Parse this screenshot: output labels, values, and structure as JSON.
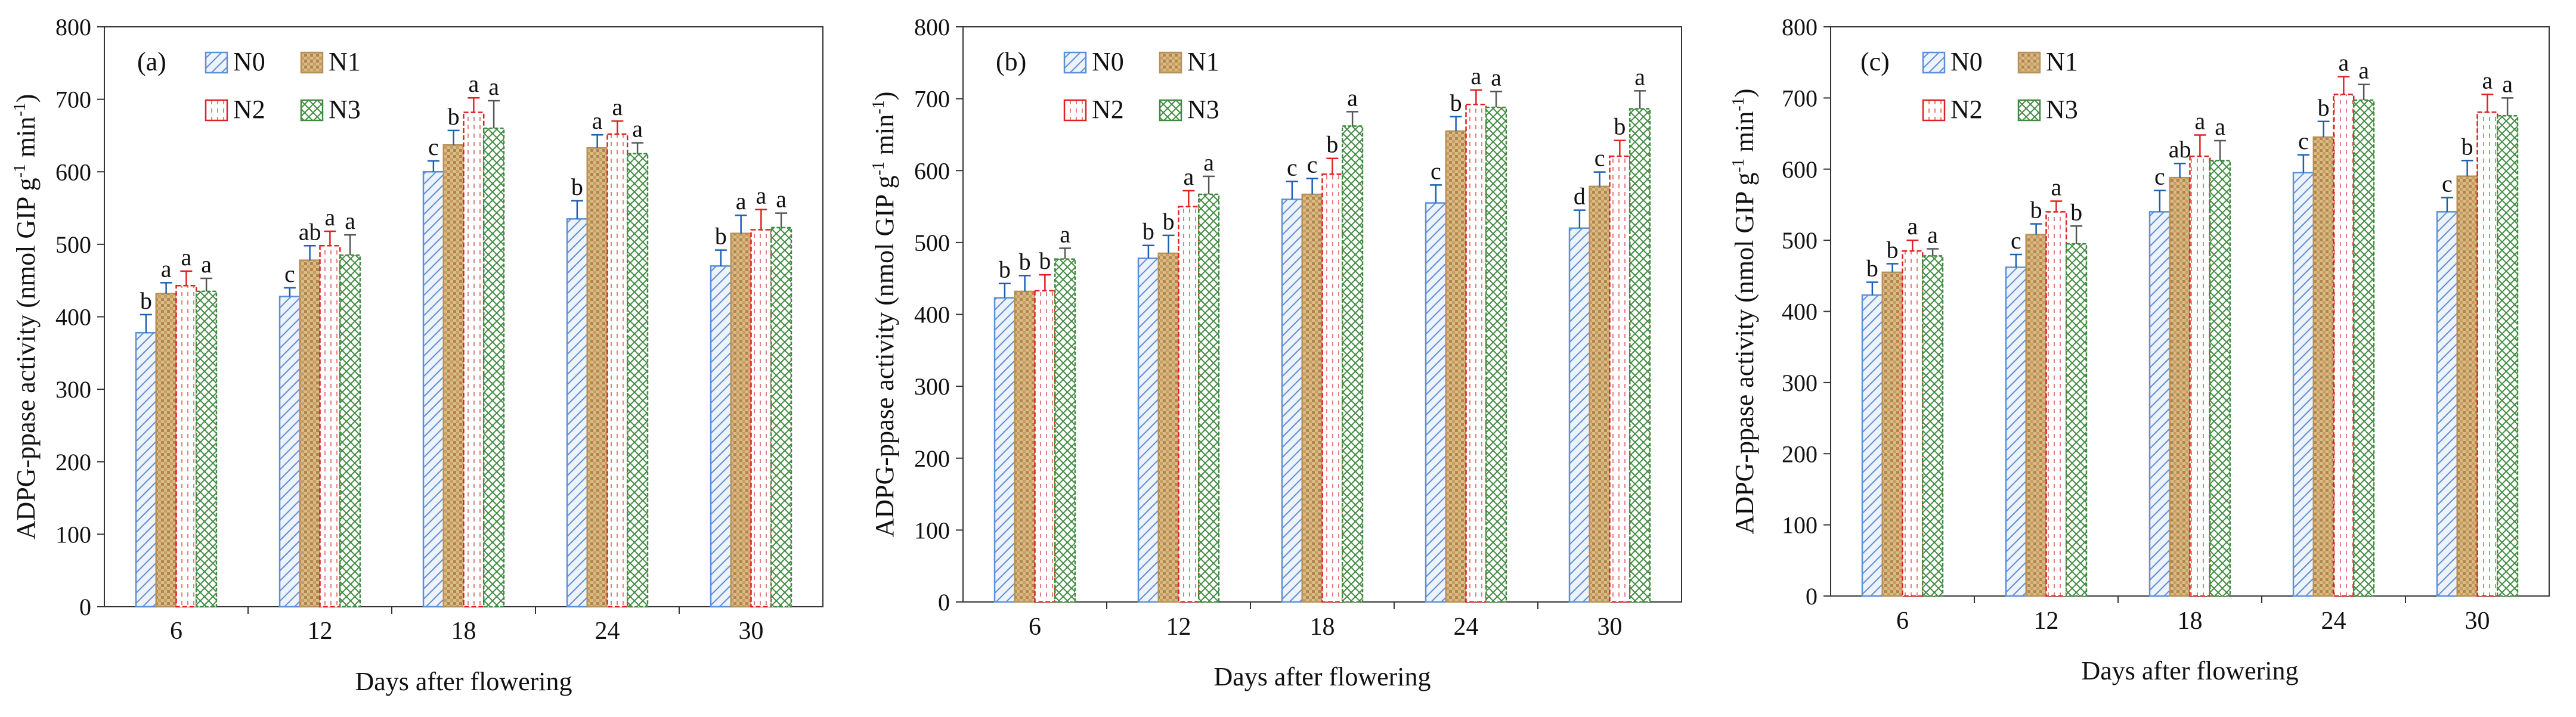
{
  "chart_data": [
    {
      "type": "bar",
      "panel_label": "(a)",
      "title": "",
      "xlabel": "Days after flowering",
      "ylabel": "ADPG-ppase activity (nmol GIP g",
      "ylabel_sup": "-1",
      "ylabel_mid": " min",
      "ylabel_sup2": "-1",
      "ylabel_end": ")",
      "categories": [
        "6",
        "12",
        "18",
        "24",
        "30"
      ],
      "ylim": [
        0,
        800
      ],
      "yticks": [
        "0",
        "100",
        "200",
        "300",
        "400",
        "500",
        "600",
        "700",
        "800"
      ],
      "legend": [
        "N0",
        "N1",
        "N2",
        "N3"
      ],
      "series": [
        {
          "name": "N0",
          "values": [
            378,
            428,
            600,
            535,
            470
          ],
          "errors": [
            25,
            12,
            15,
            25,
            22
          ],
          "letters": [
            "b",
            "c",
            "c",
            "b",
            "b"
          ]
        },
        {
          "name": "N1",
          "values": [
            432,
            478,
            637,
            633,
            515
          ],
          "errors": [
            15,
            20,
            20,
            18,
            25
          ],
          "letters": [
            "a",
            "ab",
            "b",
            "a",
            "a"
          ]
        },
        {
          "name": "N2",
          "values": [
            443,
            498,
            682,
            652,
            520
          ],
          "errors": [
            20,
            20,
            20,
            18,
            28
          ],
          "letters": [
            "a",
            "a",
            "a",
            "a",
            "a"
          ]
        },
        {
          "name": "N3",
          "values": [
            435,
            485,
            660,
            625,
            523
          ],
          "errors": [
            18,
            28,
            38,
            15,
            20
          ],
          "letters": [
            "a",
            "a",
            "a",
            "a",
            "a"
          ]
        }
      ]
    },
    {
      "type": "bar",
      "panel_label": "(b)",
      "title": "",
      "xlabel": "Days after flowering",
      "ylabel": "ADPG-ppase activity (nmol GIP g",
      "ylabel_sup": "-1",
      "ylabel_mid": " min",
      "ylabel_sup2": "-1",
      "ylabel_end": ")",
      "categories": [
        "6",
        "12",
        "18",
        "24",
        "30"
      ],
      "ylim": [
        0,
        800
      ],
      "yticks": [
        "0",
        "100",
        "200",
        "300",
        "400",
        "500",
        "600",
        "700",
        "800"
      ],
      "legend": [
        "N0",
        "N1",
        "N2",
        "N3"
      ],
      "series": [
        {
          "name": "N0",
          "values": [
            423,
            478,
            560,
            555,
            520
          ],
          "errors": [
            20,
            18,
            25,
            25,
            25
          ],
          "letters": [
            "b",
            "b",
            "c",
            "c",
            "d"
          ]
        },
        {
          "name": "N1",
          "values": [
            432,
            485,
            567,
            655,
            578
          ],
          "errors": [
            22,
            25,
            22,
            20,
            20
          ],
          "letters": [
            "b",
            "b",
            "c",
            "b",
            "c"
          ]
        },
        {
          "name": "N2",
          "values": [
            433,
            550,
            595,
            692,
            620
          ],
          "errors": [
            22,
            22,
            22,
            20,
            22
          ],
          "letters": [
            "b",
            "a",
            "b",
            "a",
            "b"
          ]
        },
        {
          "name": "N3",
          "values": [
            477,
            567,
            662,
            688,
            686
          ],
          "errors": [
            15,
            25,
            20,
            22,
            25
          ],
          "letters": [
            "a",
            "a",
            "a",
            "a",
            "a"
          ]
        }
      ]
    },
    {
      "type": "bar",
      "panel_label": "(c)",
      "title": "",
      "xlabel": "Days after flowering",
      "ylabel": "ADPG-ppase activity (nmol GIP g",
      "ylabel_sup": "-1",
      "ylabel_mid": " min",
      "ylabel_sup2": "-1",
      "ylabel_end": ")",
      "categories": [
        "6",
        "12",
        "18",
        "24",
        "30"
      ],
      "ylim": [
        0,
        800
      ],
      "yticks": [
        "0",
        "100",
        "200",
        "300",
        "400",
        "500",
        "600",
        "700",
        "800"
      ],
      "legend": [
        "N0",
        "N1",
        "N2",
        "N3"
      ],
      "series": [
        {
          "name": "N0",
          "values": [
            423,
            462,
            540,
            595,
            540
          ],
          "errors": [
            18,
            18,
            30,
            25,
            20
          ],
          "letters": [
            "b",
            "c",
            "c",
            "c",
            "c"
          ]
        },
        {
          "name": "N1",
          "values": [
            455,
            508,
            588,
            645,
            590
          ],
          "errors": [
            12,
            15,
            20,
            22,
            22
          ],
          "letters": [
            "b",
            "b",
            "ab",
            "b",
            "b"
          ]
        },
        {
          "name": "N2",
          "values": [
            485,
            540,
            618,
            705,
            680
          ],
          "errors": [
            15,
            15,
            30,
            25,
            25
          ],
          "letters": [
            "a",
            "a",
            "a",
            "a",
            "a"
          ]
        },
        {
          "name": "N3",
          "values": [
            478,
            495,
            612,
            697,
            675
          ],
          "errors": [
            10,
            25,
            28,
            22,
            25
          ],
          "letters": [
            "a",
            "b",
            "a",
            "a",
            "a"
          ]
        }
      ]
    }
  ],
  "colors": {
    "N0": "#5b8fd6",
    "N1": "#b8905a",
    "N2": "#e02020",
    "N3": "#3f8a3f",
    "N1_fill": "#d9bb86",
    "errbar": "#1a5fb4"
  }
}
